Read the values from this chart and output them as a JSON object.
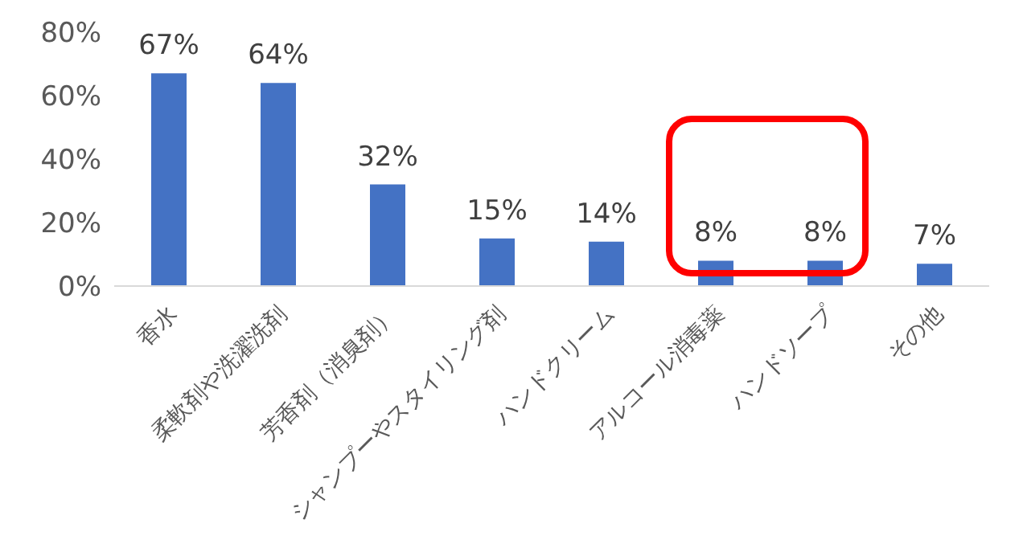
{
  "chart_data": {
    "type": "bar",
    "categories": [
      "香水",
      "柔軟剤や洗濯洗剤",
      "芳香剤（消臭剤）",
      "シャンプーやスタイリング剤",
      "ハンドクリーム",
      "アルコール消毒薬",
      "ハンドソープ",
      "その他"
    ],
    "values": [
      67,
      64,
      32,
      15,
      14,
      8,
      8,
      7
    ],
    "value_labels": [
      "67%",
      "64%",
      "32%",
      "15%",
      "14%",
      "8%",
      "8%",
      "7%"
    ],
    "color": "#4472c4",
    "ylim": [
      0,
      80
    ],
    "yticks": [
      {
        "value": 0,
        "label": "0%"
      },
      {
        "value": 20,
        "label": "20%"
      },
      {
        "value": 40,
        "label": "40%"
      },
      {
        "value": 60,
        "label": "60%"
      },
      {
        "value": 80,
        "label": "80%"
      }
    ],
    "grid": false
  }
}
